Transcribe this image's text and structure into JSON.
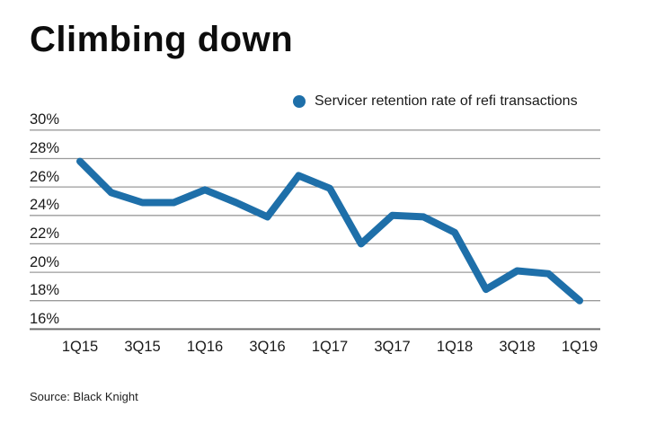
{
  "title": "Climbing down",
  "source": "Source: Black Knight",
  "legend": {
    "marker": "dot-icon",
    "label": "Servicer retention rate of refi transactions"
  },
  "colors": {
    "line": "#1e6fa9",
    "gridline": "#9b9b9b",
    "baseline": "#6f6f6f",
    "text": "#1a1a1a",
    "background": "#ffffff"
  },
  "chart_data": {
    "type": "line",
    "title": "Climbing down",
    "x": [
      "1Q15",
      "2Q15",
      "3Q15",
      "4Q15",
      "1Q16",
      "2Q16",
      "3Q16",
      "4Q16",
      "1Q17",
      "2Q17",
      "3Q17",
      "4Q17",
      "1Q18",
      "2Q18",
      "3Q18",
      "4Q18",
      "1Q19"
    ],
    "series": [
      {
        "name": "Servicer retention rate of refi transactions",
        "values": [
          27.8,
          25.6,
          24.9,
          24.9,
          25.8,
          24.9,
          23.9,
          26.8,
          25.9,
          22.0,
          24.0,
          23.9,
          22.8,
          18.8,
          20.1,
          19.9,
          18.0
        ]
      }
    ],
    "x_tick_labels": [
      "1Q15",
      "3Q15",
      "1Q16",
      "3Q16",
      "1Q17",
      "3Q17",
      "1Q18",
      "3Q18",
      "1Q19"
    ],
    "y_tick_labels": [
      "30%",
      "28%",
      "26%",
      "24%",
      "22%",
      "20%",
      "18%",
      "16%"
    ],
    "y_unit": "%",
    "ylim": [
      16,
      30
    ],
    "y_step": 2,
    "grid": "horizontal",
    "legend_position": "top-right"
  }
}
